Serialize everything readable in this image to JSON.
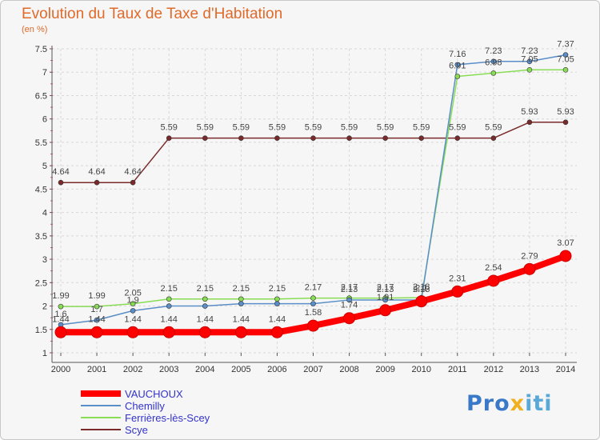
{
  "title": "Evolution du Taux de Taxe d'Habitation",
  "unit": "(en %)",
  "brand": {
    "parts": [
      "Pro",
      "x",
      "iti"
    ],
    "colors": [
      "#3a78c8",
      "#f0b020",
      "#58a8d8"
    ]
  },
  "chart_data": {
    "type": "line",
    "title": "Evolution du Taux de Taxe d'Habitation",
    "ylabel": "(en %)",
    "xlabel": "",
    "ylim": [
      1,
      7.5
    ],
    "yticks": [
      "1",
      "1.5",
      "2",
      "2.5",
      "3",
      "3.5",
      "4",
      "4.5",
      "5",
      "5.5",
      "6",
      "6.5",
      "7",
      "7.5"
    ],
    "x": [
      "2000",
      "2001",
      "2002",
      "2003",
      "2004",
      "2005",
      "2006",
      "2007",
      "2008",
      "2009",
      "2010",
      "2011",
      "2012",
      "2013",
      "2014"
    ],
    "grid": true,
    "legend": "bottom-left",
    "series": [
      {
        "name": "VAUCHOUX",
        "color": "#ff0000",
        "width": 8,
        "marker": 7,
        "values": [
          1.44,
          1.44,
          1.44,
          1.44,
          1.44,
          1.44,
          1.44,
          1.58,
          1.74,
          1.91,
          2.1,
          2.31,
          2.54,
          2.79,
          3.07
        ],
        "labels": [
          "1.44",
          "1.44",
          "1.44",
          "1.44",
          "1.44",
          "1.44",
          "1.44",
          "1.58",
          "1.74",
          "1.91",
          "2.1",
          "2.31",
          "2.54",
          "2.79",
          "3.07"
        ]
      },
      {
        "name": "Chemilly",
        "color": "#5a8ec8",
        "width": 1.5,
        "marker": 3,
        "values": [
          1.6,
          1.7,
          1.9,
          2.0,
          2.0,
          2.05,
          2.05,
          2.05,
          2.13,
          2.13,
          2.13,
          7.16,
          7.23,
          7.23,
          7.37
        ],
        "labels": [
          "1.6",
          "1.7",
          "1.9",
          "",
          "",
          "",
          "",
          "",
          "2.13",
          "2.13",
          "2.13",
          "7.16",
          "7.23",
          "7.23",
          "7.37"
        ]
      },
      {
        "name": "Ferrières-lès-Scey",
        "color": "#88dd55",
        "width": 1.5,
        "marker": 3,
        "values": [
          1.99,
          1.99,
          2.05,
          2.15,
          2.15,
          2.15,
          2.15,
          2.17,
          2.17,
          2.17,
          2.18,
          6.91,
          6.98,
          7.05,
          7.05
        ],
        "labels": [
          "1.99",
          "1.99",
          "2.05",
          "2.15",
          "2.15",
          "2.15",
          "2.15",
          "2.17",
          "2.17",
          "2.17",
          "2.18",
          "6.91",
          "6.98",
          "7.05",
          "7.05"
        ]
      },
      {
        "name": "Scye",
        "color": "#7a2a2a",
        "width": 1.5,
        "marker": 3,
        "values": [
          4.64,
          4.64,
          4.64,
          5.59,
          5.59,
          5.59,
          5.59,
          5.59,
          5.59,
          5.59,
          5.59,
          5.59,
          5.59,
          5.93,
          5.93
        ],
        "labels": [
          "4.64",
          "4.64",
          "4.64",
          "5.59",
          "5.59",
          "5.59",
          "5.59",
          "5.59",
          "5.59",
          "5.59",
          "5.59",
          "5.59",
          "5.59",
          "5.93",
          "5.93"
        ]
      }
    ],
    "extra_labels": [
      {
        "series": 1,
        "index": 3,
        "text": ""
      }
    ]
  }
}
